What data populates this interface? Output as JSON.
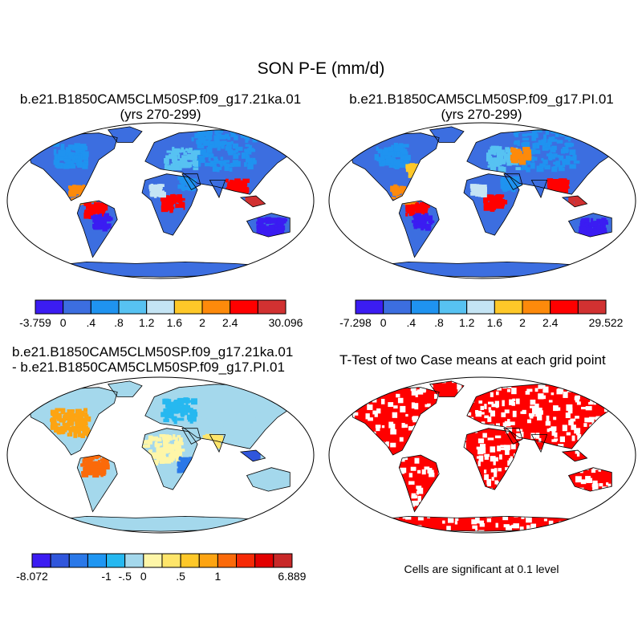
{
  "page": {
    "title": "SON P-E (mm/d)"
  },
  "chart_data": [
    {
      "type": "heatmap",
      "panel": "top-left",
      "title_line1": "b.e21.B1850CAM5CLM50SP.f09_g17.21ka.01",
      "title_line2": "(yrs 270-299)",
      "colorbar": {
        "colors": [
          "#3b1cf2",
          "#3c6ee0",
          "#1f93f0",
          "#57c2f2",
          "#c4e4f4",
          "#fec829",
          "#fd8a0b",
          "#ff0000",
          "#d13131"
        ],
        "labels": [
          "-3.759",
          "0",
          ".4",
          ".8",
          "1.2",
          "1.6",
          "2",
          "2.4",
          "30.096"
        ]
      }
    },
    {
      "type": "heatmap",
      "panel": "top-right",
      "title_line1": "b.e21.B1850CAM5CLM50SP.f09_g17.PI.01",
      "title_line2": "(yrs 270-299)",
      "colorbar": {
        "colors": [
          "#3b1cf2",
          "#3c6ee0",
          "#1f93f0",
          "#57c2f2",
          "#c4e4f4",
          "#fec829",
          "#fd8a0b",
          "#ff0000",
          "#d13131"
        ],
        "labels": [
          "-7.298",
          "0",
          ".4",
          ".8",
          "1.2",
          "1.6",
          "2",
          "2.4",
          "29.522"
        ]
      }
    },
    {
      "type": "heatmap",
      "panel": "bottom-left",
      "title_line1": "b.e21.B1850CAM5CLM50SP.f09_g17.21ka.01",
      "title_line2": "- b.e21.B1850CAM5CLM50SP.f09_g17.PI.01",
      "colorbar": {
        "colors": [
          "#3b1cf2",
          "#3056dc",
          "#2a78e8",
          "#1f96f2",
          "#26b8f0",
          "#a4d8ec",
          "#fef6a8",
          "#fee56a",
          "#fec829",
          "#fda412",
          "#fb6a0a",
          "#f62a06",
          "#e20000",
          "#c82828"
        ],
        "labels": [
          "-8.072",
          "-1",
          "-.5",
          "0",
          ".5",
          "1",
          "6.889"
        ]
      }
    },
    {
      "type": "heatmap",
      "panel": "bottom-right",
      "title": "T-Test of two Case means at each grid point",
      "note": "Cells are significant at 0.1 level",
      "significant_color": "#ff0000"
    }
  ]
}
